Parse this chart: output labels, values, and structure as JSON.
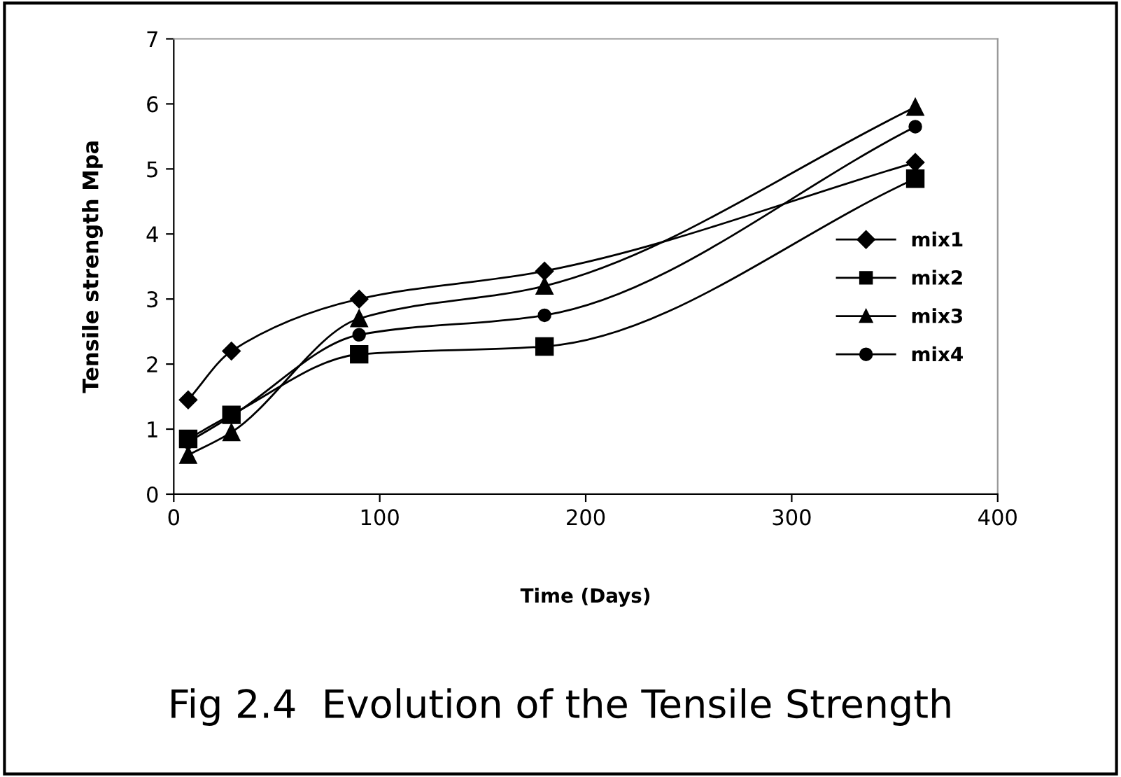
{
  "chart_data": {
    "type": "line",
    "title": "Fig 2.4  Evolution of the Tensile Strength",
    "xlabel": "Time (Days)",
    "ylabel": "Tensile strength Mpa",
    "x": [
      7,
      28,
      90,
      180,
      360
    ],
    "series": [
      {
        "name": "mix1",
        "color": "#000000",
        "marker": "diamond",
        "values": [
          1.45,
          2.2,
          3.0,
          3.43,
          5.1
        ]
      },
      {
        "name": "mix2",
        "color": "#000000",
        "marker": "square",
        "values": [
          0.85,
          1.22,
          2.15,
          2.27,
          4.85
        ]
      },
      {
        "name": "mix3",
        "color": "#000000",
        "marker": "triangle",
        "values": [
          0.6,
          0.95,
          2.7,
          3.2,
          5.95
        ]
      },
      {
        "name": "mix4",
        "color": "#000000",
        "marker": "circle",
        "values": [
          0.8,
          1.2,
          2.45,
          2.75,
          5.65
        ]
      }
    ],
    "xlim": [
      0,
      400
    ],
    "xticks": [
      0,
      100,
      200,
      300,
      400
    ],
    "ylim": [
      0,
      7
    ],
    "yticks": [
      0,
      1,
      2,
      3,
      4,
      5,
      6,
      7
    ],
    "grid": false,
    "legend": "right",
    "line_style": "solid"
  }
}
